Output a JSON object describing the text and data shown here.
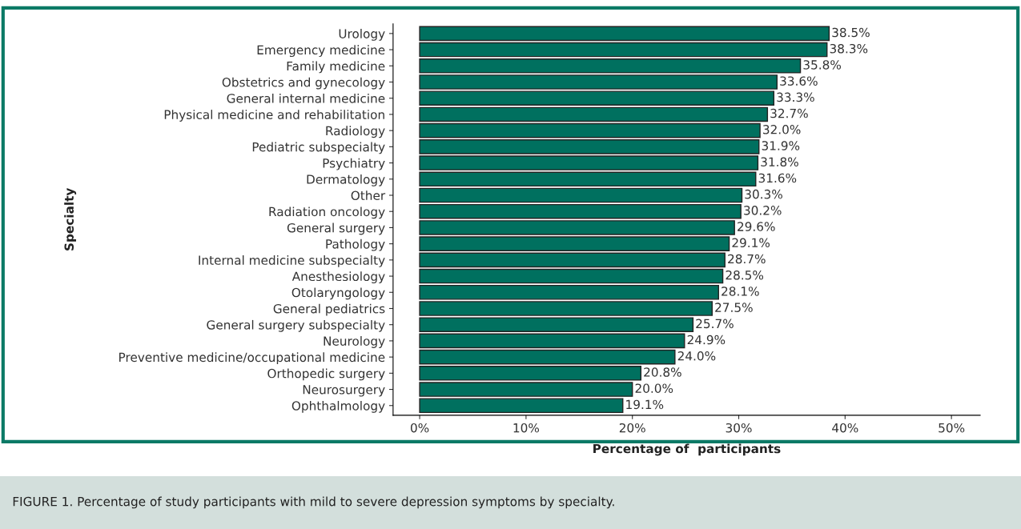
{
  "chart_data": {
    "type": "bar",
    "orientation": "horizontal",
    "xlabel": "Percentage of  participants",
    "ylabel": "Specialty",
    "categories": [
      "Urology",
      "Emergency medicine",
      "Family medicine",
      "Obstetrics and gynecology",
      "General internal medicine",
      "Physical medicine and rehabilitation",
      "Radiology",
      "Pediatric subspecialty",
      "Psychiatry",
      "Dermatology",
      "Other",
      "Radiation oncology",
      "General surgery",
      "Pathology",
      "Internal medicine subspecialty",
      "Anesthesiology",
      "Otolaryngology",
      "General pediatrics",
      "General surgery subspecialty",
      "Neurology",
      "Preventive medicine/occupational medicine",
      "Orthopedic surgery",
      "Neurosurgery",
      "Ophthalmology"
    ],
    "values": [
      38.5,
      38.3,
      35.8,
      33.6,
      33.3,
      32.7,
      32.0,
      31.9,
      31.8,
      31.6,
      30.3,
      30.2,
      29.6,
      29.1,
      28.7,
      28.5,
      28.1,
      27.5,
      25.7,
      24.9,
      24.0,
      20.8,
      20.0,
      19.1
    ],
    "value_labels": [
      "38.5%",
      "38.3%",
      "35.8%",
      "33.6%",
      "33.3%",
      "32.7%",
      "32.0%",
      "31.9%",
      "31.8%",
      "31.6%",
      "30.3%",
      "30.2%",
      "29.6%",
      "29.1%",
      "28.7%",
      "28.5%",
      "28.1%",
      "27.5%",
      "25.7%",
      "24.9%",
      "24.0%",
      "20.8%",
      "20.0%",
      "19.1%"
    ],
    "color": "#00705f",
    "xlim": [
      -2.5,
      52.7
    ],
    "xticks": [
      {
        "value": 0,
        "label": "0%"
      },
      {
        "value": 10,
        "label": "10%"
      },
      {
        "value": 20,
        "label": "20%"
      },
      {
        "value": 30,
        "label": "30%"
      },
      {
        "value": 40,
        "label": "40%"
      },
      {
        "value": 50,
        "label": "50%"
      }
    ],
    "grid": false,
    "legend": false,
    "annotations": [
      "FIGURE 1. Percentage of study participants with mild to severe depression symptoms by specialty."
    ]
  }
}
